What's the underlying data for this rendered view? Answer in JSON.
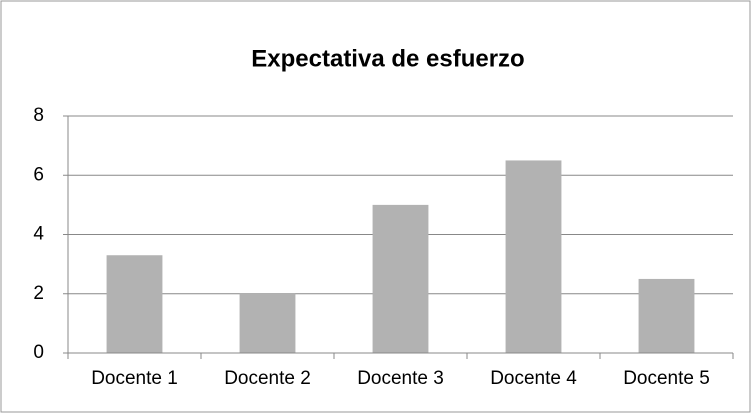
{
  "chart_data": {
    "type": "bar",
    "title": "Expectativa de esfuerzo",
    "categories": [
      "Docente 1",
      "Docente 2",
      "Docente 3",
      "Docente 4",
      "Docente 5"
    ],
    "values": [
      3.3,
      2,
      5,
      6.5,
      2.5
    ],
    "color": "#b2b2b2",
    "ylim": [
      0,
      8
    ],
    "yticks": [
      0,
      2,
      4,
      6,
      8
    ],
    "grid": true
  }
}
